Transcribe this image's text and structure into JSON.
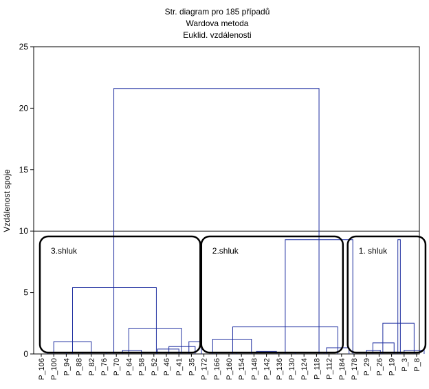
{
  "chart_data": {
    "type": "dendrogram",
    "title_lines": [
      "Str. diagram pro 185 případů",
      "Wardova metoda",
      "Euklid. vzdálenosti"
    ],
    "xlabel": "",
    "ylabel": "Vzdálenost spoje",
    "ylim": [
      0,
      25
    ],
    "yticks": [
      0,
      5,
      10,
      15,
      20,
      25
    ],
    "grid": false,
    "cut_height": 10,
    "leaf_labels": [
      "P_106",
      "P_100",
      "P_94",
      "P_88",
      "P_82",
      "P_76",
      "P_70",
      "P_64",
      "P_58",
      "P_52",
      "P_46",
      "P_41",
      "P_35",
      "P_172",
      "P_166",
      "P_160",
      "P_154",
      "P_148",
      "P_142",
      "P_136",
      "P_130",
      "P_124",
      "P_118",
      "P_112",
      "P_184",
      "P_178",
      "P_29",
      "P_26",
      "P_19",
      "P_3",
      "P_8"
    ],
    "links": [
      {
        "left": 0.5,
        "right": 2,
        "height": 0.1
      },
      {
        "left": 3.3,
        "right": 5.2,
        "height": 0.1
      },
      {
        "left": 1,
        "right": 4,
        "height": 1.0
      },
      {
        "left": 6.5,
        "right": 8,
        "height": 0.3
      },
      {
        "left": 9.3,
        "right": 11,
        "height": 0.4
      },
      {
        "left": 11.8,
        "right": 12.8,
        "height": 1.0
      },
      {
        "left": 10.2,
        "right": 12.3,
        "height": 0.6
      },
      {
        "left": 7,
        "right": 11.2,
        "height": 2.1
      },
      {
        "left": 2.5,
        "right": 9.2,
        "height": 5.4
      },
      {
        "left": 14,
        "right": 15.6,
        "height": 0.1
      },
      {
        "left": 13.7,
        "right": 16.8,
        "height": 1.2
      },
      {
        "left": 17.2,
        "right": 18.8,
        "height": 0.2
      },
      {
        "left": 20.3,
        "right": 22.6,
        "height": 0.1
      },
      {
        "left": 22.8,
        "right": 24.6,
        "height": 0.5
      },
      {
        "left": 15.3,
        "right": 23.7,
        "height": 2.2
      },
      {
        "left": 19.5,
        "right": 24.9,
        "height": 9.3
      },
      {
        "left": 26,
        "right": 27.1,
        "height": 0.3
      },
      {
        "left": 26.5,
        "right": 28.2,
        "height": 0.9
      },
      {
        "left": 29,
        "right": 30.6,
        "height": 0.3
      },
      {
        "left": 27.3,
        "right": 29.8,
        "height": 2.5
      },
      {
        "left": 28.5,
        "right": 28.7,
        "height": 9.3
      },
      {
        "left": 5.8,
        "right": 22.2,
        "height": 21.6
      }
    ],
    "clusters": [
      {
        "label": "3.shluk",
        "from": 0,
        "to": 12.6
      },
      {
        "label": "2.shluk",
        "from": 12.9,
        "to": 24.0
      },
      {
        "label": "1. shluk",
        "from": 24.6,
        "to": 30.6
      }
    ],
    "colors": {
      "links": "#1f2fa0",
      "frame": "#000000",
      "cluster_box": "#000000"
    }
  }
}
